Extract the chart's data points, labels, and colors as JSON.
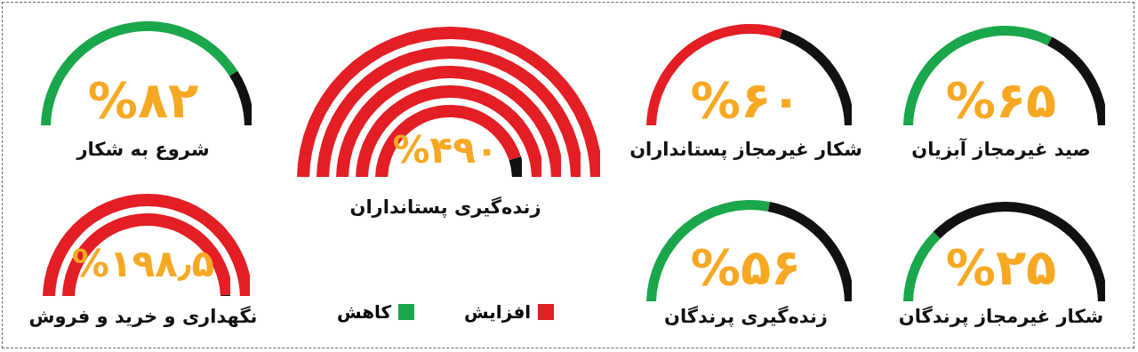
{
  "chart_data": [
    {
      "type": "other",
      "title": "صید غیرمجاز آبزیان",
      "values": [
        65
      ],
      "value_labels": [
        "%۶۵"
      ],
      "color": "#1aa64a"
    },
    {
      "type": "other",
      "title": "شکار غیرمجاز پستانداران",
      "values": [
        60
      ],
      "value_labels": [
        "%۶۰"
      ],
      "color": "#e31e24"
    },
    {
      "type": "other",
      "title": "زنده‌گیری پستانداران",
      "values": [
        490
      ],
      "value_labels": [
        "%۴۹۰"
      ],
      "color": "#e31e24"
    },
    {
      "type": "other",
      "title": "شروع به شکار",
      "values": [
        82
      ],
      "value_labels": [
        "%۸۲"
      ],
      "color": "#1aa64a"
    },
    {
      "type": "other",
      "title": "شکار غیرمجاز پرندگان",
      "values": [
        25
      ],
      "value_labels": [
        "%۲۵"
      ],
      "color": "#1aa64a"
    },
    {
      "type": "other",
      "title": "زنده‌گیری پرندگان",
      "values": [
        56
      ],
      "value_labels": [
        "%۵۶"
      ],
      "color": "#1aa64a"
    },
    {
      "type": "other",
      "legend": "bottom",
      "series": [
        {
          "name": "افزایش",
          "color": "#e31e24"
        },
        {
          "name": "کاهش",
          "color": "#1aa64a"
        }
      ]
    },
    {
      "type": "other",
      "title": "نگهداری و خرید و فروش",
      "values": [
        198.5
      ],
      "value_labels": [
        "%۱۹۸٫۵"
      ],
      "color": "#e31e24"
    }
  ]
}
